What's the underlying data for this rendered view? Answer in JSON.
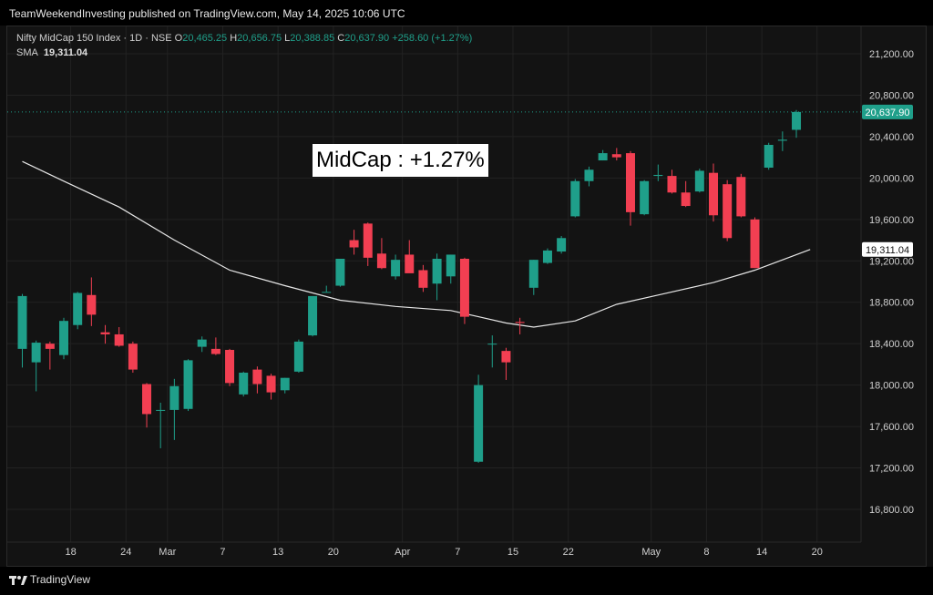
{
  "header": {
    "publisher": "TeamWeekendInvesting published on TradingView.com, May 14, 2025 10:06 UTC"
  },
  "legend": {
    "symbol": "Nifty MidCap 150 Index · 1D · NSE",
    "o_label": "O",
    "o_value": "20,465.25",
    "h_label": "H",
    "h_value": "20,656.75",
    "l_label": "L",
    "l_value": "20,388.85",
    "c_label": "C",
    "c_value": "20,637.90",
    "change": "+258.60 (+1.27%)",
    "sma_label": "SMA",
    "sma_value": "19,311.04"
  },
  "annotation": "MidCap : +1.27%",
  "footer": {
    "brand": "TradingView"
  },
  "colors": {
    "up": "#1f9f8a",
    "down": "#f23f52",
    "sma": "#e6e6e6",
    "grid": "#222222",
    "background": "#131313"
  },
  "chart_data": {
    "type": "candlestick",
    "title": "Nifty MidCap 150 Index · 1D · NSE",
    "ylim": [
      16500,
      21500
    ],
    "y_ticks": [
      16800,
      17200,
      17600,
      18000,
      18400,
      18800,
      19200,
      19600,
      20000,
      20400,
      20800,
      21200
    ],
    "y_tick_labels": [
      "16,800.00",
      "17,200.00",
      "17,600.00",
      "18,000.00",
      "18,400.00",
      "18,800.00",
      "19,200.00",
      "19,600.00",
      "20,000.00",
      "20,400.00",
      "20,800.00",
      "21,200.00"
    ],
    "x_labels": [
      "18",
      "24",
      "Mar",
      "7",
      "13",
      "20",
      "Apr",
      "7",
      "15",
      "22",
      "May",
      "8",
      "14",
      "20"
    ],
    "x_label_index": [
      3.5,
      7.5,
      10.5,
      14.5,
      18.5,
      22.5,
      27.5,
      31.5,
      35.5,
      39.5,
      45.5,
      49.5,
      53.5,
      57.5
    ],
    "candles": [
      {
        "o": 18350,
        "h": 18880,
        "l": 18170,
        "c": 18860
      },
      {
        "o": 18220,
        "h": 18430,
        "l": 17940,
        "c": 18410
      },
      {
        "o": 18400,
        "h": 18420,
        "l": 18150,
        "c": 18350
      },
      {
        "o": 18290,
        "h": 18650,
        "l": 18250,
        "c": 18620
      },
      {
        "o": 18580,
        "h": 18900,
        "l": 18540,
        "c": 18890
      },
      {
        "o": 18870,
        "h": 19040,
        "l": 18570,
        "c": 18680
      },
      {
        "o": 18510,
        "h": 18580,
        "l": 18400,
        "c": 18490
      },
      {
        "o": 18490,
        "h": 18560,
        "l": 18370,
        "c": 18380
      },
      {
        "o": 18400,
        "h": 18420,
        "l": 18120,
        "c": 18150
      },
      {
        "o": 18010,
        "h": 18020,
        "l": 17590,
        "c": 17720
      },
      {
        "o": 17760,
        "h": 17830,
        "l": 17390,
        "c": 17760
      },
      {
        "o": 17760,
        "h": 18060,
        "l": 17470,
        "c": 17990
      },
      {
        "o": 17770,
        "h": 18250,
        "l": 17750,
        "c": 18240
      },
      {
        "o": 18370,
        "h": 18470,
        "l": 18320,
        "c": 18440
      },
      {
        "o": 18350,
        "h": 18460,
        "l": 18290,
        "c": 18300
      },
      {
        "o": 18340,
        "h": 18350,
        "l": 17990,
        "c": 18020
      },
      {
        "o": 17910,
        "h": 18130,
        "l": 17890,
        "c": 18120
      },
      {
        "o": 18150,
        "h": 18180,
        "l": 17920,
        "c": 18010
      },
      {
        "o": 18090,
        "h": 18110,
        "l": 17860,
        "c": 17930
      },
      {
        "o": 17950,
        "h": 18070,
        "l": 17920,
        "c": 18070
      },
      {
        "o": 18130,
        "h": 18440,
        "l": 18120,
        "c": 18420
      },
      {
        "o": 18480,
        "h": 18860,
        "l": 18470,
        "c": 18860
      },
      {
        "o": 18900,
        "h": 18960,
        "l": 18900,
        "c": 18900
      },
      {
        "o": 18960,
        "h": 19220,
        "l": 18950,
        "c": 19220
      },
      {
        "o": 19400,
        "h": 19500,
        "l": 19260,
        "c": 19330
      },
      {
        "o": 19560,
        "h": 19570,
        "l": 19150,
        "c": 19230
      },
      {
        "o": 19270,
        "h": 19420,
        "l": 19120,
        "c": 19130
      },
      {
        "o": 19050,
        "h": 19260,
        "l": 19020,
        "c": 19210
      },
      {
        "o": 19260,
        "h": 19400,
        "l": 19100,
        "c": 19080
      },
      {
        "o": 19110,
        "h": 19160,
        "l": 18900,
        "c": 18940
      },
      {
        "o": 18980,
        "h": 19270,
        "l": 18820,
        "c": 19220
      },
      {
        "o": 19050,
        "h": 19260,
        "l": 18980,
        "c": 19260
      },
      {
        "o": 19220,
        "h": 19230,
        "l": 18590,
        "c": 18660
      },
      {
        "o": 17260,
        "h": 18100,
        "l": 17250,
        "c": 18000
      },
      {
        "o": 18400,
        "h": 18480,
        "l": 18170,
        "c": 18400
      },
      {
        "o": 18330,
        "h": 18360,
        "l": 18050,
        "c": 18220
      },
      {
        "o": 18610,
        "h": 18650,
        "l": 18490,
        "c": 18600
      },
      {
        "o": 18940,
        "h": 19210,
        "l": 18870,
        "c": 19210
      },
      {
        "o": 19180,
        "h": 19320,
        "l": 19170,
        "c": 19300
      },
      {
        "o": 19290,
        "h": 19440,
        "l": 19270,
        "c": 19420
      },
      {
        "o": 19630,
        "h": 19990,
        "l": 19620,
        "c": 19970
      },
      {
        "o": 19970,
        "h": 20110,
        "l": 19920,
        "c": 20080
      },
      {
        "o": 20170,
        "h": 20270,
        "l": 20170,
        "c": 20240
      },
      {
        "o": 20230,
        "h": 20290,
        "l": 20170,
        "c": 20200
      },
      {
        "o": 20240,
        "h": 20260,
        "l": 19540,
        "c": 19670
      },
      {
        "o": 19650,
        "h": 19980,
        "l": 19640,
        "c": 19970
      },
      {
        "o": 20020,
        "h": 20130,
        "l": 19970,
        "c": 20030
      },
      {
        "o": 20020,
        "h": 20080,
        "l": 19850,
        "c": 19860
      },
      {
        "o": 19860,
        "h": 19970,
        "l": 19720,
        "c": 19730
      },
      {
        "o": 19870,
        "h": 20090,
        "l": 19860,
        "c": 20070
      },
      {
        "o": 20050,
        "h": 20140,
        "l": 19580,
        "c": 19640
      },
      {
        "o": 19940,
        "h": 19980,
        "l": 19390,
        "c": 19420
      },
      {
        "o": 20010,
        "h": 20040,
        "l": 19620,
        "c": 19630
      },
      {
        "o": 19600,
        "h": 19620,
        "l": 19130,
        "c": 19130
      },
      {
        "o": 20100,
        "h": 20340,
        "l": 20080,
        "c": 20320
      },
      {
        "o": 20360,
        "h": 20450,
        "l": 20260,
        "c": 20370
      },
      {
        "o": 20465.25,
        "h": 20656.75,
        "l": 20388.85,
        "c": 20637.9
      }
    ],
    "sma": {
      "name": "SMA",
      "points": [
        [
          0,
          20160
        ],
        [
          3,
          19970
        ],
        [
          7,
          19720
        ],
        [
          11,
          19400
        ],
        [
          15,
          19110
        ],
        [
          19,
          18960
        ],
        [
          23,
          18820
        ],
        [
          27,
          18760
        ],
        [
          31,
          18720
        ],
        [
          33,
          18660
        ],
        [
          35,
          18600
        ],
        [
          37,
          18560
        ],
        [
          40,
          18620
        ],
        [
          43,
          18780
        ],
        [
          46,
          18870
        ],
        [
          50,
          18990
        ],
        [
          53,
          19110
        ],
        [
          57,
          19310
        ]
      ]
    },
    "last_price_label": "20,637.90",
    "sma_label": "19,311.04"
  }
}
